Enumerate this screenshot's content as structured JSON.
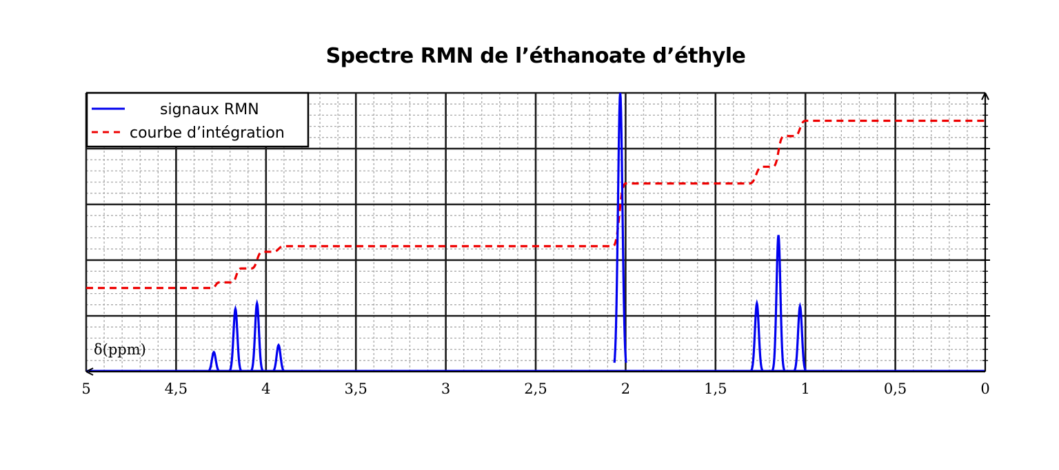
{
  "chart_data": {
    "type": "line",
    "title": "Spectre RMN de l’éthanoate d’éthyle",
    "xlabel": "δ(ppm)",
    "ylabel": "",
    "x_axis_reversed": true,
    "xlim": [
      5,
      0
    ],
    "ylim": [
      0,
      1
    ],
    "x_ticks": [
      5,
      4.5,
      4,
      3.5,
      3,
      2.5,
      2,
      1.5,
      1,
      0.5,
      0
    ],
    "x_tick_labels": [
      "5",
      "4,5",
      "4",
      "3,5",
      "3",
      "2,5",
      "2",
      "1,5",
      "1",
      "0,5",
      "0"
    ],
    "grid": true,
    "legend_position": "top-left",
    "series": [
      {
        "name": "signaux RMN",
        "color": "#0000ee",
        "style": "solid",
        "peaks": [
          {
            "x": 4.29,
            "height": 0.07
          },
          {
            "x": 4.17,
            "height": 0.225
          },
          {
            "x": 4.05,
            "height": 0.245
          },
          {
            "x": 3.93,
            "height": 0.095
          },
          {
            "x": 2.03,
            "height": 1.0
          },
          {
            "x": 1.27,
            "height": 0.245
          },
          {
            "x": 1.15,
            "height": 0.49
          },
          {
            "x": 1.03,
            "height": 0.235
          }
        ]
      },
      {
        "name": "courbe d’intégration",
        "color": "#ee0000",
        "style": "dashed",
        "steps": [
          {
            "x_start": 5.0,
            "x_end": 4.3,
            "y": 0.3
          },
          {
            "x_start": 4.26,
            "x_end": 4.19,
            "y": 0.32
          },
          {
            "x_start": 4.14,
            "x_end": 4.08,
            "y": 0.37
          },
          {
            "x_start": 4.02,
            "x_end": 3.96,
            "y": 0.43
          },
          {
            "x_start": 3.9,
            "x_end": 2.07,
            "y": 0.45
          },
          {
            "x_start": 2.0,
            "x_end": 1.31,
            "y": 0.675
          },
          {
            "x_start": 1.24,
            "x_end": 1.18,
            "y": 0.735
          },
          {
            "x_start": 1.12,
            "x_end": 1.06,
            "y": 0.845
          },
          {
            "x_start": 1.0,
            "x_end": 0.0,
            "y": 0.9
          }
        ]
      }
    ]
  }
}
